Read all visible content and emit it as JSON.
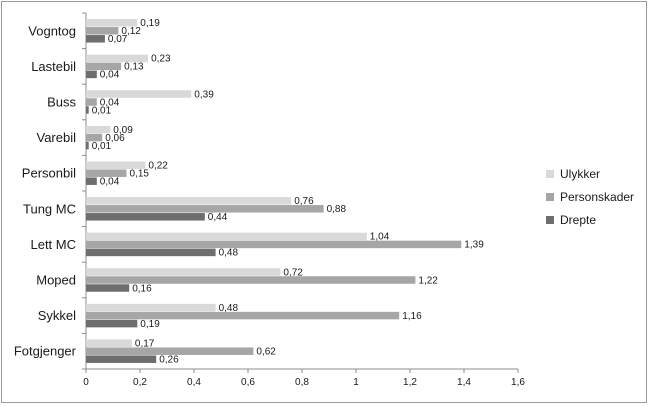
{
  "chart_data": {
    "type": "bar",
    "orientation": "horizontal",
    "title": "",
    "xlabel": "",
    "ylabel": "",
    "xlim": [
      0,
      1.6
    ],
    "x_ticks": [
      "0",
      "0,2",
      "0,4",
      "0,6",
      "0,8",
      "1",
      "1,2",
      "1,4",
      "1,6"
    ],
    "grid": false,
    "legend_position": "right",
    "categories": [
      "Vogntog",
      "Lastebil",
      "Buss",
      "Varebil",
      "Personbil",
      "Tung MC",
      "Lett MC",
      "Moped",
      "Sykkel",
      "Fotgjenger"
    ],
    "series": [
      {
        "name": "Ulykker",
        "color": "#d9d9d9",
        "values": [
          0.19,
          0.23,
          0.39,
          0.09,
          0.22,
          0.76,
          1.04,
          0.72,
          0.48,
          0.17
        ],
        "labels": [
          "0,19",
          "0,23",
          "0,39",
          "0,09",
          "0,22",
          "0,76",
          "1,04",
          "0,72",
          "0,48",
          "0,17"
        ]
      },
      {
        "name": "Personskader",
        "color": "#a6a6a6",
        "values": [
          0.12,
          0.13,
          0.04,
          0.06,
          0.15,
          0.88,
          1.39,
          1.22,
          1.16,
          0.62
        ],
        "labels": [
          "0,12",
          "0,13",
          "0,04",
          "0,06",
          "0,15",
          "0,88",
          "1,39",
          "1,22",
          "1,16",
          "0,62"
        ]
      },
      {
        "name": "Drepte",
        "color": "#6e6e6e",
        "values": [
          0.07,
          0.04,
          0.01,
          0.01,
          0.04,
          0.44,
          0.48,
          0.16,
          0.19,
          0.26
        ],
        "labels": [
          "0,07",
          "0,04",
          "0,01",
          "0,01",
          "0,04",
          "0,44",
          "0,48",
          "0,16",
          "0,19",
          "0,26"
        ]
      }
    ]
  }
}
